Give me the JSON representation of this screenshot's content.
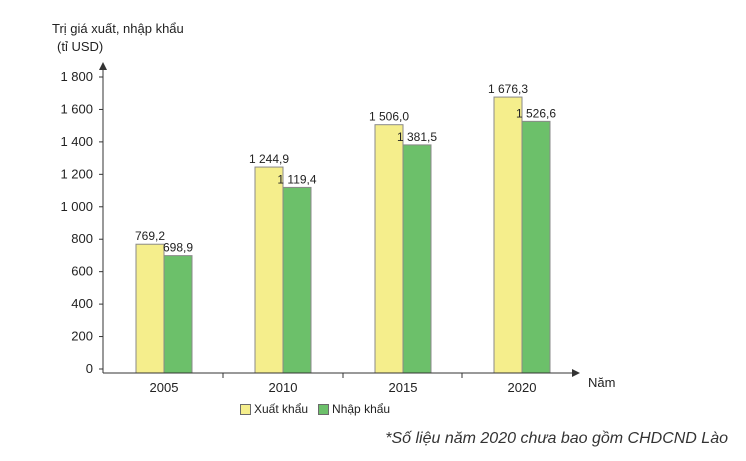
{
  "chart_data": {
    "type": "bar",
    "ylabel_lines": [
      "Trị giá xuất, nhập khẩu",
      "(tỉ USD)"
    ],
    "xlabel": "Năm",
    "categories": [
      "2005",
      "2010",
      "2015",
      "2020"
    ],
    "series": [
      {
        "name": "Xuất khẩu",
        "values": [
          769.2,
          1244.9,
          1506.0,
          1676.3
        ],
        "labels": [
          "769,2",
          "1 244,9",
          "1 506,0",
          "1 676,3"
        ],
        "color": "#f5ee8c"
      },
      {
        "name": "Nhập khẩu",
        "values": [
          698.9,
          1119.4,
          1381.5,
          1526.6
        ],
        "labels": [
          "698,9",
          "1 119,4",
          "1 381,5",
          "1 526,6"
        ],
        "color": "#6cc06a"
      }
    ],
    "ylim": [
      0,
      1800
    ],
    "yticks": [
      0,
      200,
      400,
      600,
      800,
      1000,
      1200,
      1400,
      1600,
      1800
    ],
    "ytick_labels": [
      "0",
      "200",
      "400",
      "600",
      "800",
      "1 000",
      "1 200",
      "1 400",
      "1 600",
      "1 800"
    ],
    "grid": false,
    "legend_position": "bottom"
  },
  "note": "*Số liệu năm 2020 chưa bao gồm CHDCND Lào"
}
